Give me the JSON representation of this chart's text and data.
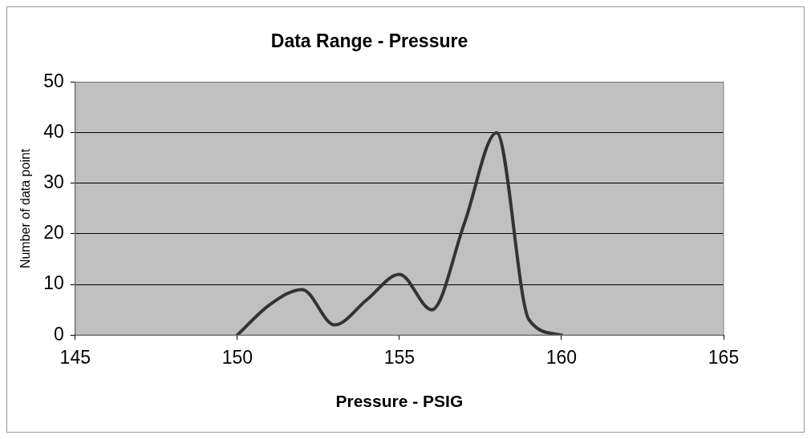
{
  "chart_data": {
    "type": "line",
    "title": "Data Range - Pressure",
    "xlabel": "Pressure - PSIG",
    "ylabel": "Number of data point",
    "x": [
      150,
      151,
      152,
      153,
      154,
      155,
      156,
      157,
      158,
      159,
      160
    ],
    "series": [
      {
        "color": "#333333",
        "values": [
          0,
          6,
          9,
          2,
          7,
          12,
          5,
          22,
          40,
          3,
          0
        ]
      }
    ],
    "xlim": [
      145,
      165
    ],
    "xticks": [
      145,
      150,
      155,
      160,
      165
    ],
    "ylim": [
      0,
      50
    ],
    "yticks": [
      0,
      10,
      20,
      30,
      40,
      50
    ],
    "grid": "y",
    "legend": false,
    "marker": "none",
    "line_style": "solid"
  }
}
